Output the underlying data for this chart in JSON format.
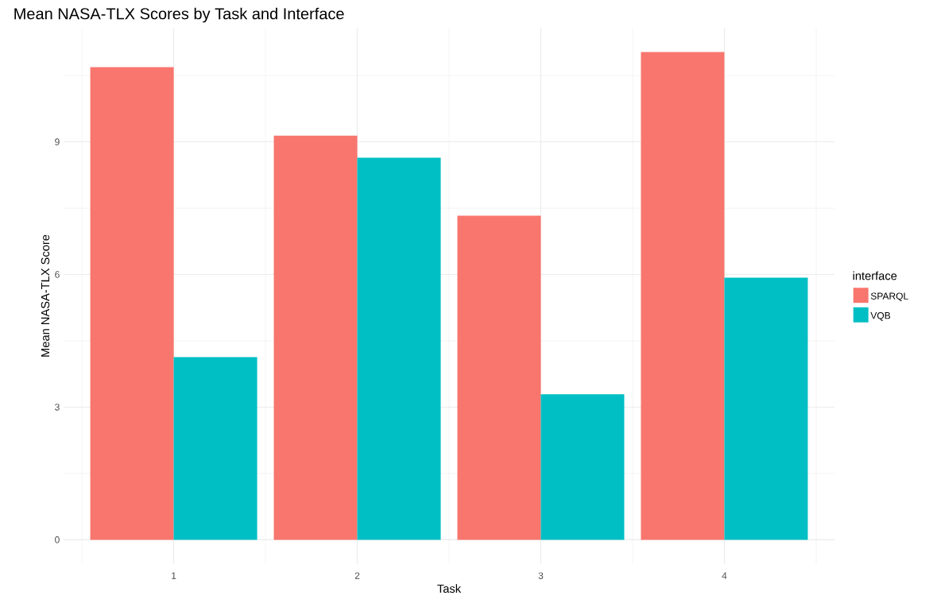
{
  "chart_data": {
    "type": "bar",
    "title": "Mean NASA-TLX Scores by Task and Interface",
    "xlabel": "Task",
    "ylabel": "Mean NASA-TLX Score",
    "legend_title": "interface",
    "categories": [
      "1",
      "2",
      "3",
      "4"
    ],
    "series": [
      {
        "name": "SPARQL",
        "color": "#f8766d",
        "values": [
          10.69,
          9.14,
          7.33,
          11.03
        ]
      },
      {
        "name": "VQB",
        "color": "#00bfc4",
        "values": [
          4.13,
          8.64,
          3.29,
          5.93
        ]
      }
    ],
    "ylim": [
      -0.55,
      11.58
    ],
    "yticks": [
      0,
      3,
      6,
      9
    ],
    "grid": true,
    "legend": "right"
  }
}
